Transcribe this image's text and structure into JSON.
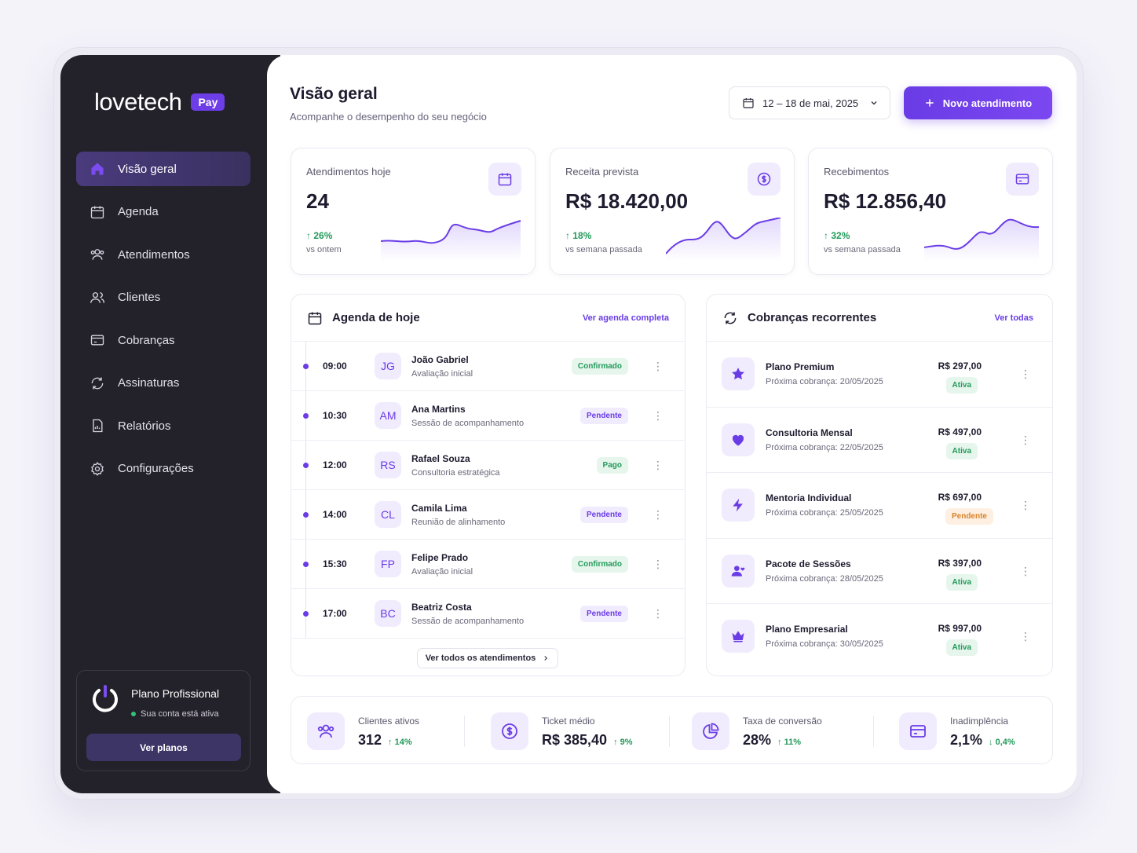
{
  "brand": {
    "name": "lovetech",
    "tag": "Pay"
  },
  "nav": [
    {
      "label": "Visão geral",
      "icon": "home-icon"
    },
    {
      "label": "Agenda",
      "icon": "calendar-icon"
    },
    {
      "label": "Atendimentos",
      "icon": "users-icon"
    },
    {
      "label": "Clientes",
      "icon": "user-group-icon"
    },
    {
      "label": "Cobranças",
      "icon": "billing-icon"
    },
    {
      "label": "Assinaturas",
      "icon": "refresh-icon"
    },
    {
      "label": "Relatórios",
      "icon": "report-icon"
    },
    {
      "label": "Configurações",
      "icon": "gear-icon"
    }
  ],
  "plan": {
    "title": "Plano Profissional",
    "status": "Sua conta está ativa",
    "button": "Ver planos"
  },
  "header": {
    "title": "Visão geral",
    "subtitle": "Acompanhe o desempenho do seu negócio",
    "date_range": "12 – 18 de mai, 2025",
    "new_button": "Novo atendimento"
  },
  "kpis": [
    {
      "label": "Atendimentos hoje",
      "value": "24",
      "trend": "26%",
      "compare": "vs ontem"
    },
    {
      "label": "Receita prevista",
      "value": "R$ 18.420,00",
      "trend": "18%",
      "compare": "vs semana passada"
    },
    {
      "label": "Recebimentos",
      "value": "R$ 12.856,40",
      "trend": "32%",
      "compare": "vs semana passada"
    }
  ],
  "agenda": {
    "title": "Agenda de hoje",
    "link": "Ver agenda completa",
    "see_all": "Ver todos os atendimentos",
    "items": [
      {
        "time": "09:00",
        "initials": "JG",
        "name": "João Gabriel",
        "desc": "Avaliação inicial",
        "status": "Confirmado",
        "tone": "green"
      },
      {
        "time": "10:30",
        "initials": "AM",
        "name": "Ana Martins",
        "desc": "Sessão de acompanhamento",
        "status": "Pendente",
        "tone": "purple"
      },
      {
        "time": "12:00",
        "initials": "RS",
        "name": "Rafael Souza",
        "desc": "Consultoria estratégica",
        "status": "Pago",
        "tone": "green"
      },
      {
        "time": "14:00",
        "initials": "CL",
        "name": "Camila Lima",
        "desc": "Reunião de alinhamento",
        "status": "Pendente",
        "tone": "purple"
      },
      {
        "time": "15:30",
        "initials": "FP",
        "name": "Felipe Prado",
        "desc": "Avaliação inicial",
        "status": "Confirmado",
        "tone": "green"
      },
      {
        "time": "17:00",
        "initials": "BC",
        "name": "Beatriz Costa",
        "desc": "Sessão de acompanhamento",
        "status": "Pendente",
        "tone": "purple"
      }
    ]
  },
  "recurring": {
    "title": "Cobranças recorrentes",
    "link": "Ver todas",
    "items": [
      {
        "name": "Plano Premium",
        "desc": "Próxima cobrança: 20/05/2025",
        "price": "R$ 297,00",
        "status": "Ativa",
        "tone": "green",
        "icon": "star-icon"
      },
      {
        "name": "Consultoria Mensal",
        "desc": "Próxima cobrança: 22/05/2025",
        "price": "R$ 497,00",
        "status": "Ativa",
        "tone": "green",
        "icon": "heart-icon"
      },
      {
        "name": "Mentoria Individual",
        "desc": "Próxima cobrança: 25/05/2025",
        "price": "R$ 697,00",
        "status": "Pendente",
        "tone": "orange",
        "icon": "bolt-icon"
      },
      {
        "name": "Pacote de Sessões",
        "desc": "Próxima cobrança: 28/05/2025",
        "price": "R$ 397,00",
        "status": "Ativa",
        "tone": "green",
        "icon": "user-heart-icon"
      },
      {
        "name": "Plano Empresarial",
        "desc": "Próxima cobrança: 30/05/2025",
        "price": "R$ 997,00",
        "status": "Ativa",
        "tone": "green",
        "icon": "crown-icon"
      }
    ]
  },
  "stats": [
    {
      "label": "Clientes ativos",
      "value": "312",
      "trend": "14%",
      "dir": "up"
    },
    {
      "label": "Ticket médio",
      "value": "R$ 385,40",
      "trend": "9%",
      "dir": "up"
    },
    {
      "label": "Taxa de conversão",
      "value": "28%",
      "trend": "11%",
      "dir": "up"
    },
    {
      "label": "Inadimplência",
      "value": "2,1%",
      "trend": "0,4%",
      "dir": "down"
    }
  ],
  "colors": {
    "accent": "#6a3ce6",
    "sidebar": "#232129",
    "positive": "#239a5a",
    "warning": "#d9822b"
  }
}
